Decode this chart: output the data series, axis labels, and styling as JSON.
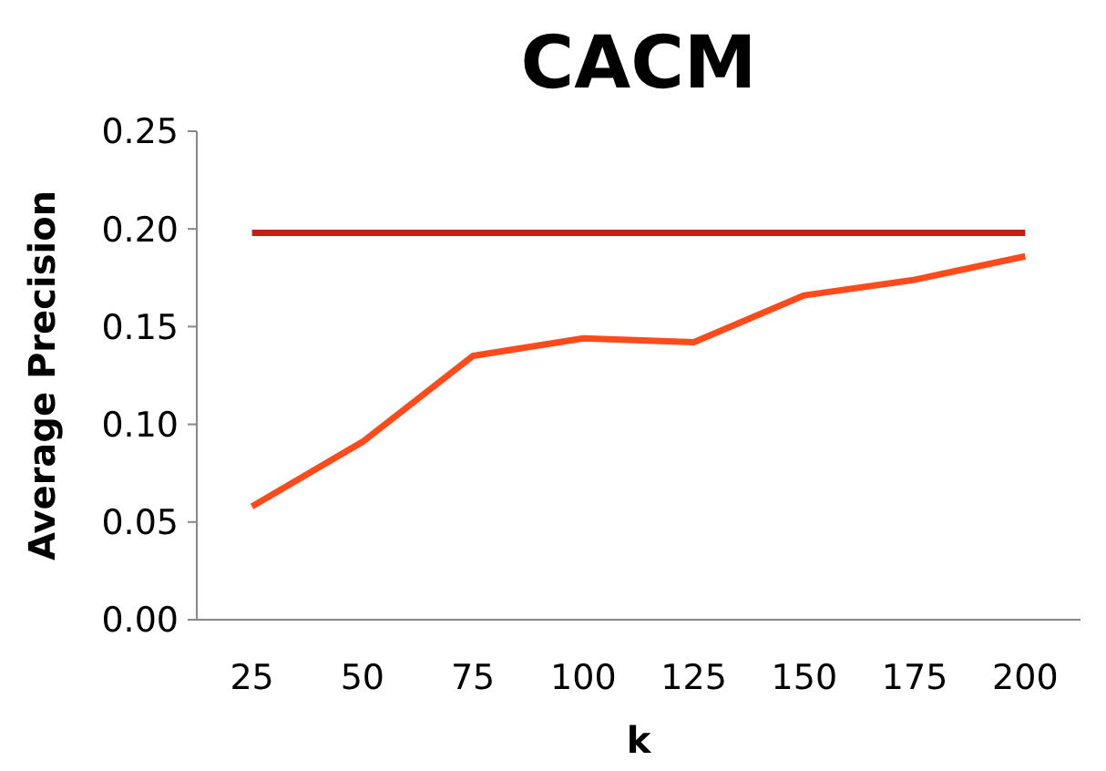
{
  "chart_data": {
    "type": "line",
    "title": "CACM",
    "xlabel": "k",
    "ylabel": "Average Precision",
    "categories": [
      "25",
      "50",
      "75",
      "100",
      "125",
      "150",
      "175",
      "200"
    ],
    "series": [
      {
        "color": "#c41e1a",
        "values": [
          0.198,
          0.198,
          0.198,
          0.198,
          0.198,
          0.198,
          0.198,
          0.198
        ]
      },
      {
        "color": "#ff4a1c",
        "values": [
          0.058,
          0.091,
          0.135,
          0.144,
          0.142,
          0.166,
          0.174,
          0.186
        ]
      }
    ],
    "ylim": [
      0,
      0.25
    ],
    "yticks": [
      {
        "value": 0,
        "label": "0.00"
      },
      {
        "value": 0.05,
        "label": "0.05"
      },
      {
        "value": 0.1,
        "label": "0.10"
      },
      {
        "value": 0.15,
        "label": "0.15"
      },
      {
        "value": 0.2,
        "label": "0.20"
      },
      {
        "value": 0.25,
        "label": "0.25"
      }
    ],
    "grid": false,
    "marker": "none",
    "line_style": "solid"
  }
}
